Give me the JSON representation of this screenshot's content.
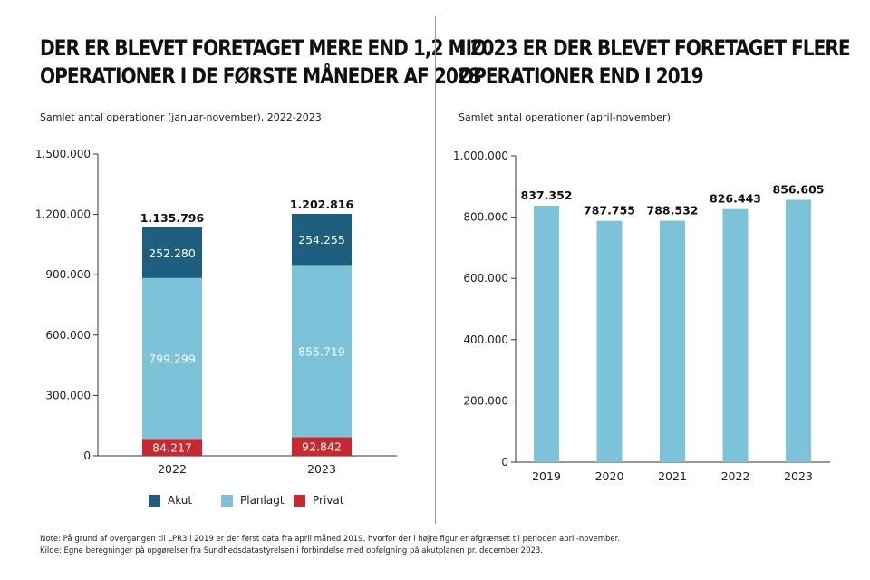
{
  "left": {
    "title_line1": "Der er blevet foretaget mere end 1,2 mio.",
    "title_line2": "operationer i de første måneder af 2023",
    "subtitle": "Samlet antal operationer (januar-november), 2022-2023"
  },
  "right": {
    "title_line1": "I 2023 er der blevet foretaget flere",
    "title_line2": "operationer end i 2019",
    "subtitle": "Samlet antal operationer (april-november)"
  },
  "legend": [
    {
      "label": "Akut",
      "color": "#1e5f80"
    },
    {
      "label": "Planlagt",
      "color": "#7cc3da"
    },
    {
      "label": "Privat",
      "color": "#c8282e"
    }
  ],
  "footnotes": {
    "note": "Note: På grund af overgangen til LPR3 i 2019 er der først data fra april måned 2019. hvorfor der i højre figur er afgrænset til perioden april-november.",
    "source": "Kilde: Egne beregninger på opgørelser fra Sundhedsdatastyrelsen i forbindelse med opfølgning på akutplanen pr. december 2023."
  },
  "chart_data": [
    {
      "type": "bar",
      "stacked": true,
      "categories": [
        "2022",
        "2023"
      ],
      "series": [
        {
          "name": "Privat",
          "color": "#c8282e",
          "values": [
            84217,
            92842
          ],
          "labels": [
            "84.217",
            "92.842"
          ]
        },
        {
          "name": "Planlagt",
          "color": "#7cc3da",
          "values": [
            799299,
            855719
          ],
          "labels": [
            "799.299",
            "855.719"
          ]
        },
        {
          "name": "Akut",
          "color": "#1e5f80",
          "values": [
            252280,
            254255
          ],
          "labels": [
            "252.280",
            "254.255"
          ]
        }
      ],
      "totals": [
        1135796,
        1202816
      ],
      "total_labels": [
        "1.135.796",
        "1.202.816"
      ],
      "ylim": [
        0,
        1500000
      ],
      "yticks": [
        0,
        300000,
        600000,
        900000,
        1200000,
        1500000
      ],
      "ytick_labels": [
        "0",
        "300.000",
        "600.000",
        "900.000",
        "1.200.000",
        "1.500.000"
      ],
      "grid": false,
      "legend_position": "bottom"
    },
    {
      "type": "bar",
      "categories": [
        "2019",
        "2020",
        "2021",
        "2022",
        "2023"
      ],
      "values": [
        837352,
        787755,
        788532,
        826443,
        856605
      ],
      "value_labels": [
        "837.352",
        "787.755",
        "788.532",
        "826.443",
        "856.605"
      ],
      "color": "#7cc3da",
      "ylim": [
        0,
        1000000
      ],
      "yticks": [
        0,
        200000,
        400000,
        600000,
        800000,
        1000000
      ],
      "ytick_labels": [
        "0",
        "200.000",
        "400.000",
        "600.000",
        "800.000",
        "1.000.000"
      ],
      "grid": false
    }
  ]
}
